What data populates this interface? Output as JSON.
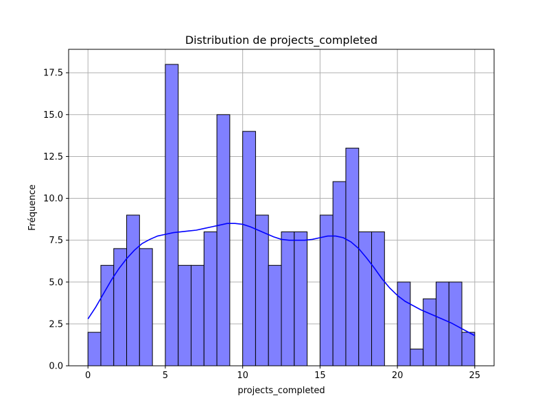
{
  "chart_data": {
    "type": "bar",
    "title": "Distribution de projects_completed",
    "xlabel": "projects_completed",
    "ylabel": "Fréquence",
    "xlim": [
      -1.25,
      26.25
    ],
    "ylim": [
      0,
      18.9
    ],
    "xticks": [
      0,
      5,
      10,
      15,
      20,
      25
    ],
    "xtick_labels": [
      "0",
      "5",
      "10",
      "15",
      "20",
      "25"
    ],
    "yticks": [
      0,
      2.5,
      5,
      7.5,
      10,
      12.5,
      15,
      17.5
    ],
    "ytick_labels": [
      "0.0",
      "2.5",
      "5.0",
      "7.5",
      "10.0",
      "12.5",
      "15.0",
      "17.5"
    ],
    "grid": true,
    "bin_edges": [
      0,
      0.8333,
      1.6667,
      2.5,
      3.3333,
      4.1667,
      5,
      5.8333,
      6.6667,
      7.5,
      8.3333,
      9.1667,
      10,
      10.8333,
      11.6667,
      12.5,
      13.3333,
      14.1667,
      15,
      15.8333,
      16.6667,
      17.5,
      18.3333,
      19.1667,
      20,
      20.8333,
      21.6667,
      22.5,
      23.3333,
      24.1667,
      25
    ],
    "values": [
      2,
      6,
      7,
      9,
      7,
      0,
      18,
      6,
      6,
      8,
      15,
      0,
      14,
      9,
      6,
      8,
      8,
      0,
      9,
      11,
      13,
      8,
      8,
      0,
      5,
      1,
      4,
      5,
      5,
      2
    ],
    "bar_color": "#8080ff",
    "bar_edge_color": "#000000",
    "kde": {
      "color": "#0000ff",
      "x": [
        0,
        0.5,
        1,
        1.5,
        2,
        2.5,
        3,
        3.5,
        4,
        4.5,
        5,
        5.5,
        6,
        6.5,
        7,
        7.5,
        8,
        8.5,
        9,
        9.5,
        10,
        10.5,
        11,
        11.5,
        12,
        12.5,
        13,
        13.5,
        14,
        14.5,
        15,
        15.5,
        16,
        16.5,
        17,
        17.5,
        18,
        18.5,
        19,
        19.5,
        20,
        20.5,
        21,
        21.5,
        22,
        22.5,
        23,
        23.5,
        24,
        24.5,
        25
      ],
      "y": [
        2.8,
        3.5,
        4.3,
        5.1,
        5.8,
        6.4,
        6.9,
        7.3,
        7.55,
        7.75,
        7.85,
        7.95,
        8.0,
        8.05,
        8.1,
        8.2,
        8.3,
        8.4,
        8.5,
        8.5,
        8.45,
        8.3,
        8.1,
        7.9,
        7.7,
        7.55,
        7.5,
        7.5,
        7.5,
        7.55,
        7.65,
        7.75,
        7.75,
        7.65,
        7.4,
        7.0,
        6.45,
        5.85,
        5.2,
        4.65,
        4.2,
        3.85,
        3.6,
        3.35,
        3.15,
        2.95,
        2.75,
        2.55,
        2.3,
        2.05,
        1.8
      ]
    }
  }
}
